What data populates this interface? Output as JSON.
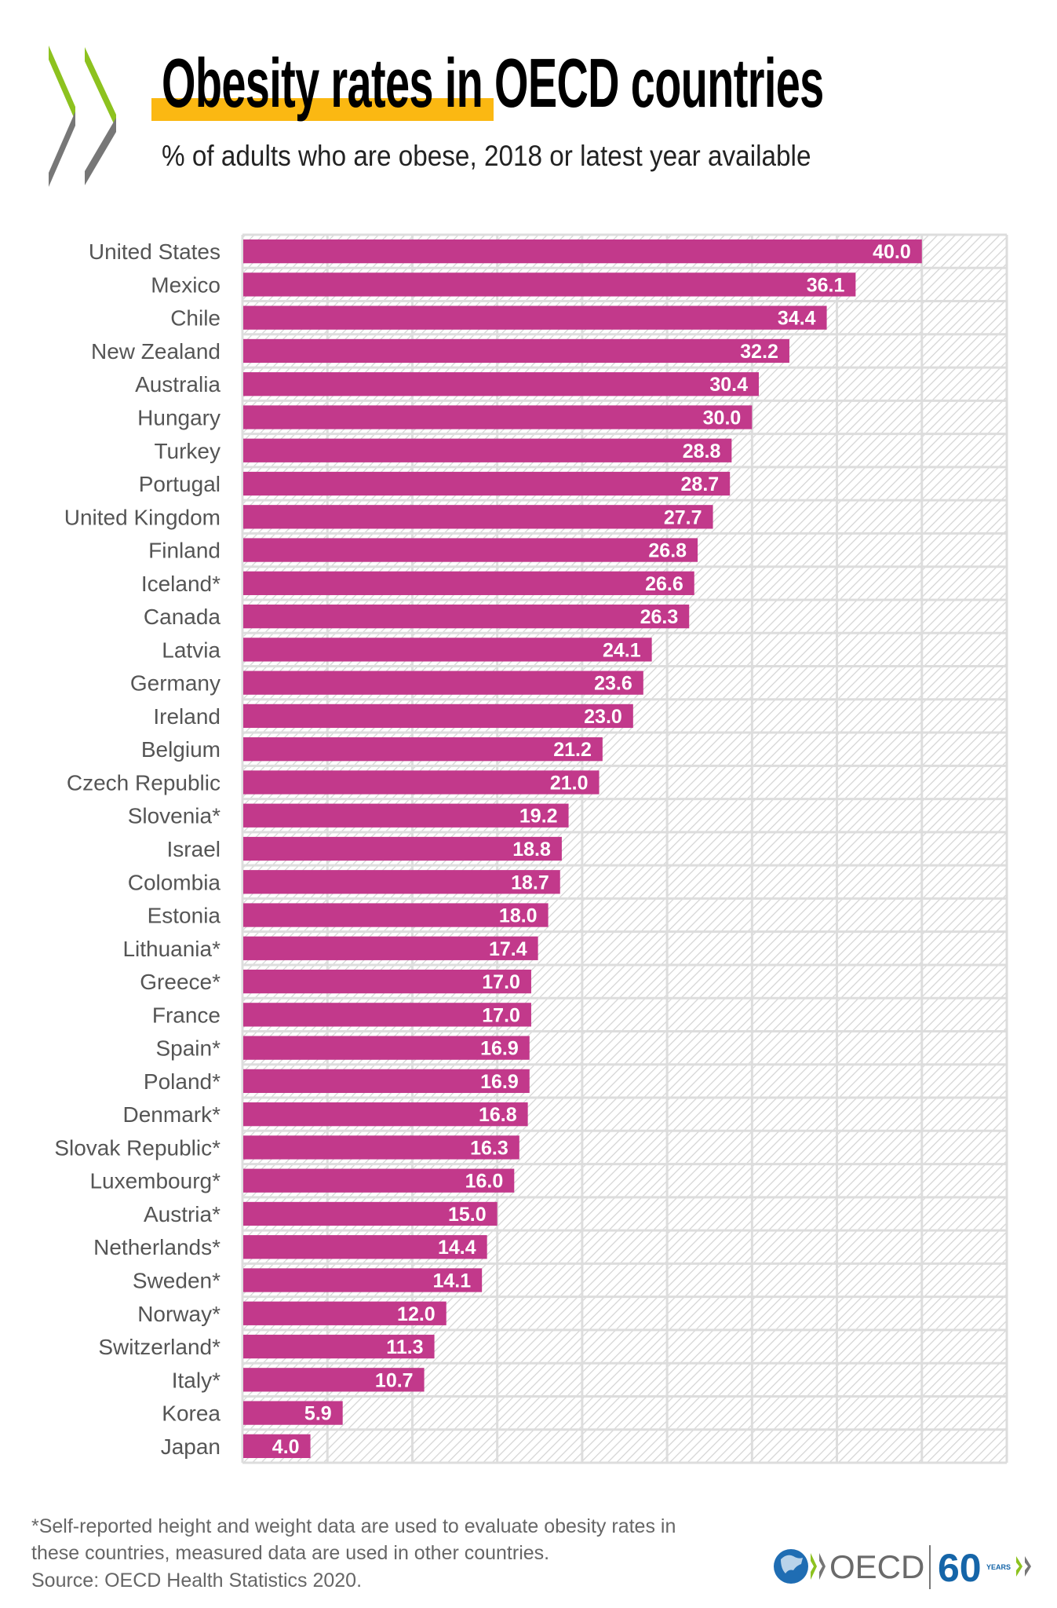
{
  "header": {
    "title_highlight": "Obesity rates",
    "title_rest": " in OECD countries",
    "subtitle": "% of adults who are obese, 2018 or latest year available"
  },
  "colors": {
    "bar": "#c2398b",
    "highlight": "#fbb812",
    "logo_green": "#8dc21f",
    "logo_gray": "#777777",
    "grid": "#dddddd",
    "label": "#555555"
  },
  "chart_data": {
    "type": "bar",
    "orientation": "horizontal",
    "title": "Obesity rates in OECD countries",
    "subtitle": "% of adults who are obese, 2018 or latest year available",
    "xlim": [
      0,
      45
    ],
    "grid": true,
    "categories": [
      "United States",
      "Mexico",
      "Chile",
      "New Zealand",
      "Australia",
      "Hungary",
      "Turkey",
      "Portugal",
      "United Kingdom",
      "Finland",
      "Iceland*",
      "Canada",
      "Latvia",
      "Germany",
      "Ireland",
      "Belgium",
      "Czech Republic",
      "Slovenia*",
      "Israel",
      "Colombia",
      "Estonia",
      "Lithuania*",
      "Greece*",
      "France",
      "Spain*",
      "Poland*",
      "Denmark*",
      "Slovak Republic*",
      "Luxembourg*",
      "Austria*",
      "Netherlands*",
      "Sweden*",
      "Norway*",
      "Switzerland*",
      "Italy*",
      "Korea",
      "Japan"
    ],
    "values": [
      40.0,
      36.1,
      34.4,
      32.2,
      30.4,
      30.0,
      28.8,
      28.7,
      27.7,
      26.8,
      26.6,
      26.3,
      24.1,
      23.6,
      23.0,
      21.2,
      21.0,
      19.2,
      18.8,
      18.7,
      18.0,
      17.4,
      17.0,
      17.0,
      16.9,
      16.9,
      16.8,
      16.3,
      16.0,
      15.0,
      14.4,
      14.1,
      12.0,
      11.3,
      10.7,
      5.9,
      4.0
    ],
    "labels": [
      "40.0",
      "36.1",
      "34.4",
      "32.2",
      "30.4",
      "30.0",
      "28.8",
      "28.7",
      "27.7",
      "26.8",
      "26.6",
      "26.3",
      "24.1",
      "23.6",
      "23.0",
      "21.2",
      "21.0",
      "19.2",
      "18.8",
      "18.7",
      "18.0",
      "17.4",
      "17.0",
      "17.0",
      "16.9",
      "16.9",
      "16.8",
      "16.3",
      "16.0",
      "15.0",
      "14.4",
      "14.1",
      "12.0",
      "11.3",
      "10.7",
      "5.9",
      "4.0"
    ]
  },
  "footer": {
    "note_line1": "*Self-reported height and weight data are used to evaluate obesity rates in",
    "note_line2": "these countries, measured data are used in other countries.",
    "source": "Source: OECD Health Statistics 2020.",
    "logo_text": "OECD",
    "anniversary": "60",
    "anniversary_sub": "YEARS"
  }
}
